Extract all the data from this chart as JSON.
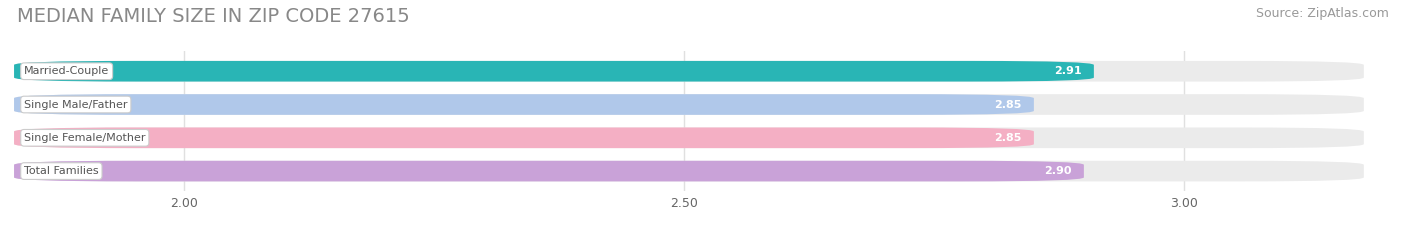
{
  "title": "MEDIAN FAMILY SIZE IN ZIP CODE 27615",
  "source": "Source: ZipAtlas.com",
  "categories": [
    "Married-Couple",
    "Single Male/Father",
    "Single Female/Mother",
    "Total Families"
  ],
  "values": [
    2.91,
    2.85,
    2.85,
    2.9
  ],
  "bar_colors": [
    "#29b5b5",
    "#b0c8ea",
    "#f4afc4",
    "#c9a2d8"
  ],
  "bar_bg_colors": [
    "#ebebeb",
    "#ebebeb",
    "#ebebeb",
    "#ebebeb"
  ],
  "xlim": [
    1.83,
    3.18
  ],
  "data_min": 1.83,
  "data_max": 3.18,
  "xticks": [
    2.0,
    2.5,
    3.0
  ],
  "title_color": "#888888",
  "title_fontsize": 14,
  "source_fontsize": 9,
  "bar_height": 0.62,
  "background_color": "#ffffff",
  "grid_color": "#e0e0e0"
}
